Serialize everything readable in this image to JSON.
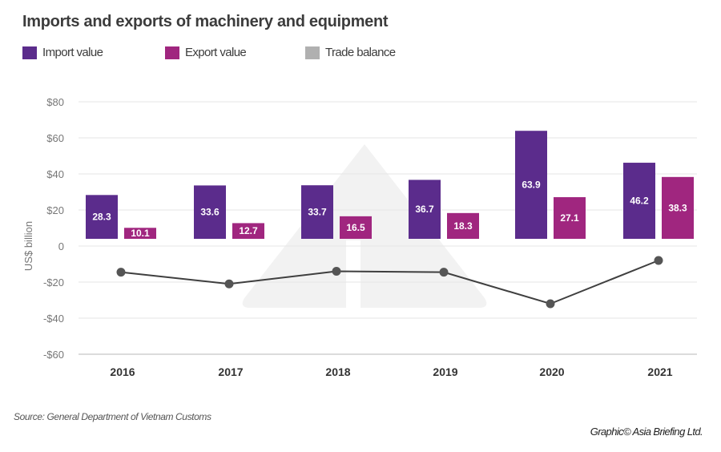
{
  "colors": {
    "import": "#5b2c8c",
    "export": "#a0267f",
    "trade_balance_legend": "#b0b0b0",
    "trade_balance_line": "#3f3f3f",
    "trade_balance_marker": "#555555",
    "grid": "#e6e6e6",
    "watermark": "#f2f2f2"
  },
  "footer": {
    "source": "Source: General Department of Vietnam Customs",
    "credit": "Graphic© Asia Briefing Ltd."
  },
  "chart_data": {
    "type": "bar",
    "title": "Imports and exports of machinery and equipment",
    "xlabel": "",
    "ylabel": "US$ billion",
    "ylim": [
      -60,
      80
    ],
    "yticks": [
      80,
      60,
      40,
      20,
      0,
      -20,
      -40,
      -60
    ],
    "ytick_labels": [
      "$80",
      "$60",
      "$40",
      "$20",
      "0",
      "-$20",
      "-$40",
      "-$60"
    ],
    "grid": true,
    "legend": {
      "placement": "top-left",
      "entries": [
        "Import value",
        "Export value",
        "Trade balance"
      ]
    },
    "categories": [
      "2016",
      "2017",
      "2018",
      "2019",
      "2020",
      "2021"
    ],
    "series": [
      {
        "name": "Import value",
        "type": "bar",
        "values": [
          28.3,
          33.6,
          33.7,
          36.7,
          63.9,
          46.2
        ],
        "labels": [
          "28.3",
          "33.6",
          "33.7",
          "36.7",
          "63.9",
          "46.2"
        ]
      },
      {
        "name": "Export value",
        "type": "bar",
        "values": [
          10.1,
          12.7,
          16.5,
          18.3,
          27.1,
          38.3
        ],
        "labels": [
          "10.1",
          "12.7",
          "16.5",
          "18.3",
          "27.1",
          "38.3"
        ]
      },
      {
        "name": "Trade balance",
        "type": "line",
        "values": [
          -14.5,
          -21,
          -14,
          -14.5,
          -32,
          -8
        ]
      }
    ],
    "bar_baseline_value": 4
  }
}
